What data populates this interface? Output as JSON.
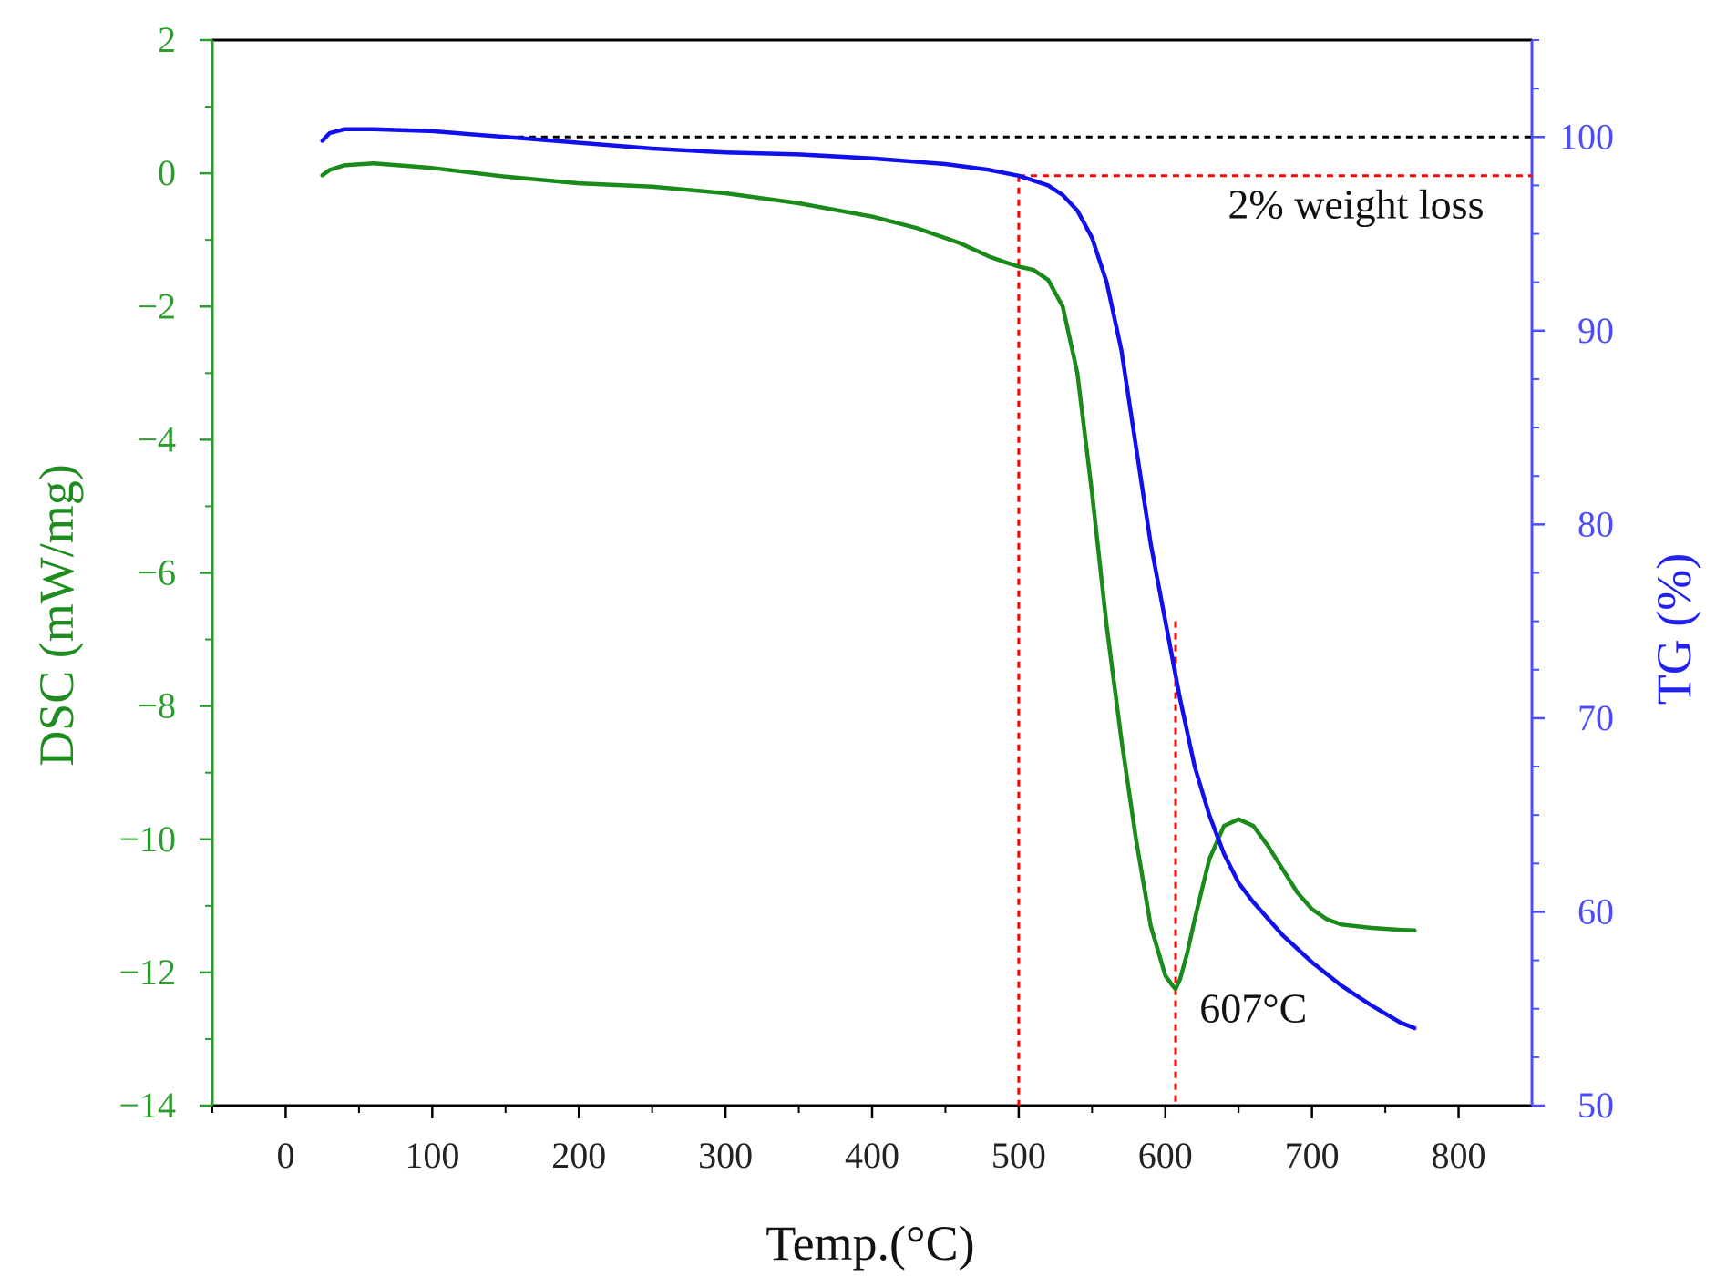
{
  "chart_data": {
    "type": "line",
    "title": "",
    "xlabel": "Temp.(°C)",
    "ylabel_left": "DSC (mW/mg)",
    "ylabel_right": "TG (%)",
    "xlim": [
      -50,
      850
    ],
    "ylim_left": [
      -14,
      2
    ],
    "ylim_right": [
      50,
      105
    ],
    "x_ticks": [
      0,
      100,
      200,
      300,
      400,
      500,
      600,
      700,
      800
    ],
    "x_tick_labels": [
      "0",
      "100",
      "200",
      "300",
      "400",
      "500",
      "600",
      "700",
      "800"
    ],
    "y_left_ticks": [
      2,
      0,
      -2,
      -4,
      -6,
      -8,
      -10,
      -12,
      -14
    ],
    "y_left_tick_labels": [
      "2",
      "0",
      "−2",
      "−4",
      "−6",
      "−8",
      "−10",
      "−12",
      "−14"
    ],
    "y_right_ticks": [
      100,
      90,
      80,
      70,
      60,
      50
    ],
    "y_right_tick_labels": [
      "100",
      "90",
      "80",
      "70",
      "60",
      "50"
    ],
    "grid": false,
    "series": [
      {
        "name": "DSC",
        "axis": "left",
        "color": "#1a8a1a",
        "x": [
          25,
          30,
          40,
          60,
          100,
          150,
          200,
          250,
          300,
          350,
          400,
          430,
          460,
          480,
          490,
          500,
          510,
          520,
          530,
          540,
          550,
          560,
          570,
          580,
          590,
          600,
          605,
          607,
          610,
          615,
          620,
          630,
          640,
          650,
          660,
          670,
          680,
          690,
          700,
          710,
          720,
          740,
          760,
          770
        ],
        "y": [
          -0.03,
          0.05,
          0.12,
          0.15,
          0.08,
          -0.05,
          -0.15,
          -0.2,
          -0.3,
          -0.45,
          -0.65,
          -0.82,
          -1.05,
          -1.25,
          -1.33,
          -1.4,
          -1.45,
          -1.6,
          -2.0,
          -3.0,
          -4.8,
          -6.8,
          -8.5,
          -10.0,
          -11.3,
          -12.05,
          -12.2,
          -12.25,
          -12.1,
          -11.7,
          -11.2,
          -10.3,
          -9.8,
          -9.7,
          -9.8,
          -10.1,
          -10.45,
          -10.8,
          -11.05,
          -11.2,
          -11.28,
          -11.33,
          -11.36,
          -11.37
        ]
      },
      {
        "name": "TG",
        "axis": "right",
        "color": "#1010ee",
        "x": [
          25,
          30,
          40,
          60,
          100,
          150,
          200,
          250,
          300,
          350,
          400,
          450,
          480,
          500,
          520,
          530,
          540,
          550,
          560,
          570,
          580,
          590,
          600,
          610,
          620,
          630,
          640,
          650,
          660,
          680,
          700,
          720,
          740,
          760,
          770
        ],
        "y": [
          99.8,
          100.2,
          100.4,
          100.4,
          100.3,
          100.0,
          99.7,
          99.4,
          99.2,
          99.1,
          98.9,
          98.6,
          98.3,
          98.0,
          97.5,
          97.0,
          96.2,
          94.8,
          92.5,
          89.0,
          84.0,
          79.0,
          75.0,
          71.0,
          67.5,
          65.0,
          63.0,
          61.5,
          60.5,
          58.8,
          57.4,
          56.2,
          55.2,
          54.3,
          54.0
        ]
      }
    ],
    "reference_lines": [
      {
        "name": "100% reference",
        "orientation": "horizontal",
        "axis": "right",
        "value": 100,
        "from_x": 150,
        "to_x": 850,
        "color": "#000000",
        "style": "dotted"
      },
      {
        "name": "98% reference",
        "orientation": "horizontal",
        "axis": "right",
        "value": 98,
        "from_x": 500,
        "to_x": 850,
        "color": "#ff0000",
        "style": "dotted"
      },
      {
        "name": "500°C marker",
        "orientation": "vertical",
        "value": 500,
        "color": "#ff0000",
        "style": "dotted"
      },
      {
        "name": "607°C marker",
        "orientation": "vertical",
        "value": 607,
        "color": "#ff0000",
        "style": "dotted"
      }
    ],
    "annotations": [
      {
        "text": "2% weight loss",
        "x": 730,
        "y_right": 95.8
      },
      {
        "text": "607°C",
        "x": 660,
        "y_left": -12.75
      }
    ],
    "colors": {
      "left_axis": "#2c9c2c",
      "right_axis": "#4c4cff",
      "frame": "#000000"
    }
  }
}
